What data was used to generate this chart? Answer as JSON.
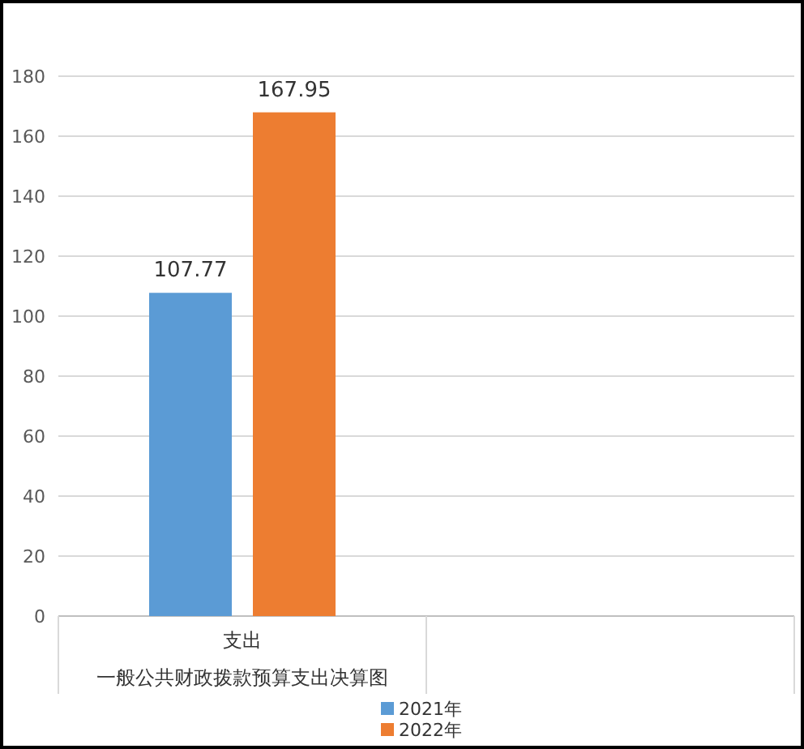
{
  "chart_data": {
    "type": "bar",
    "categories": [
      "支出",
      null
    ],
    "xlabel": "一般公共财政拨款预算支出决算图",
    "series": [
      {
        "name": "2021年",
        "color": "#5b9bd5",
        "values": [
          107.77,
          null
        ]
      },
      {
        "name": "2022年",
        "color": "#ed7d31",
        "values": [
          167.95,
          null
        ]
      }
    ],
    "ylim": [
      0,
      180
    ],
    "yticks": [
      0,
      20,
      40,
      60,
      80,
      100,
      120,
      140,
      160,
      180
    ],
    "grid": "y",
    "legend": "bottom",
    "data_labels": true
  }
}
